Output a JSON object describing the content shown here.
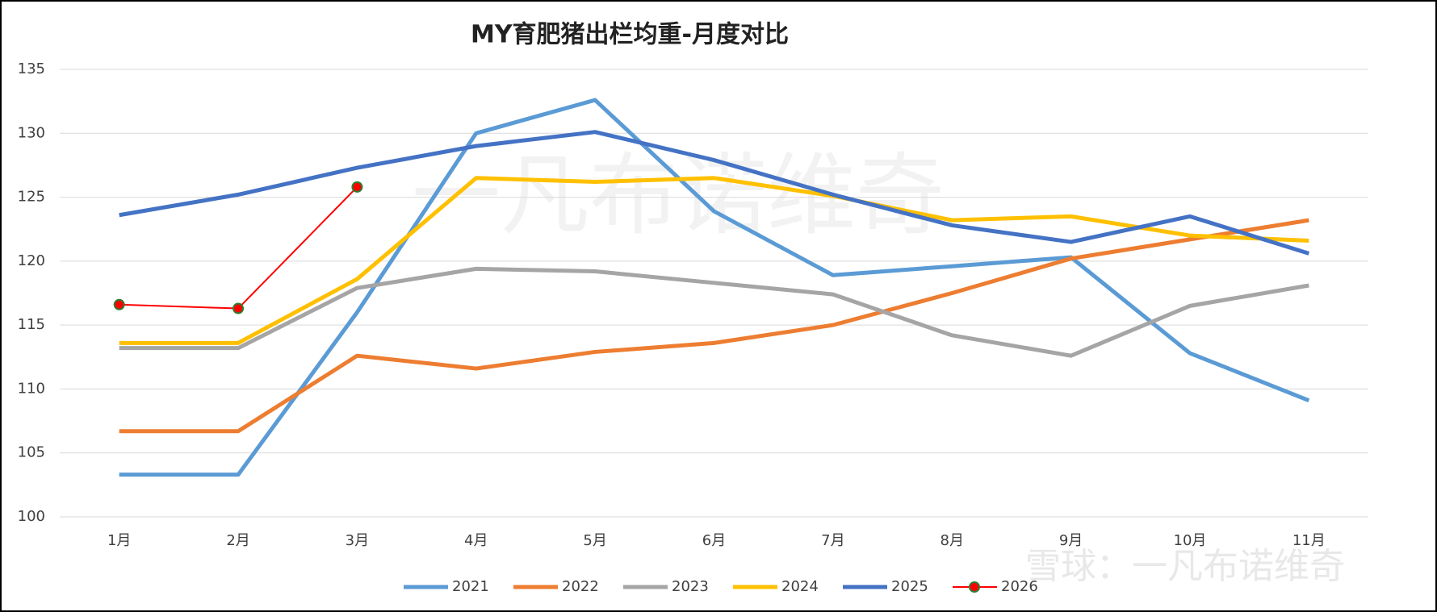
{
  "chart_data": {
    "type": "line",
    "title": "MY育肥猪出栏均重-月度对比",
    "watermark": "一凡布诺维奇",
    "source_mark": "雪球：一凡布诺维奇",
    "categories": [
      "1月",
      "2月",
      "3月",
      "4月",
      "5月",
      "6月",
      "7月",
      "8月",
      "9月",
      "10月",
      "11月"
    ],
    "series": [
      {
        "name": "2021",
        "color": "#5b9bd5",
        "values": [
          103.3,
          103.3,
          116,
          130,
          132.6,
          123.9,
          118.9,
          119.6,
          120.3,
          112.8,
          109.1
        ]
      },
      {
        "name": "2022",
        "color": "#ed7d31",
        "values": [
          106.7,
          106.7,
          112.6,
          111.6,
          112.9,
          113.6,
          115,
          117.5,
          120.2,
          121.7,
          123.2
        ]
      },
      {
        "name": "2023",
        "color": "#a5a5a5",
        "values": [
          113.2,
          113.2,
          117.9,
          119.4,
          119.2,
          118.3,
          117.4,
          114.2,
          112.6,
          116.5,
          118.1
        ]
      },
      {
        "name": "2024",
        "color": "#ffc000",
        "values": [
          113.6,
          113.6,
          118.6,
          126.5,
          126.2,
          126.5,
          125.1,
          123.2,
          123.5,
          122,
          121.6
        ]
      },
      {
        "name": "2025",
        "color": "#4472c4",
        "values": [
          123.6,
          125.2,
          127.3,
          129,
          130.1,
          127.9,
          125.2,
          122.8,
          121.5,
          123.5,
          120.6
        ]
      },
      {
        "name": "2026",
        "color": "#ff0000",
        "markers": true,
        "marker_stroke": "#2e7d32",
        "values": [
          116.6,
          116.3,
          125.8,
          null,
          null,
          null,
          null,
          null,
          null,
          null,
          null
        ]
      }
    ],
    "ylim": [
      100,
      135
    ],
    "yticks": [
      100,
      105,
      110,
      115,
      120,
      125,
      130,
      135
    ],
    "grid": true,
    "legend": "bottom"
  }
}
